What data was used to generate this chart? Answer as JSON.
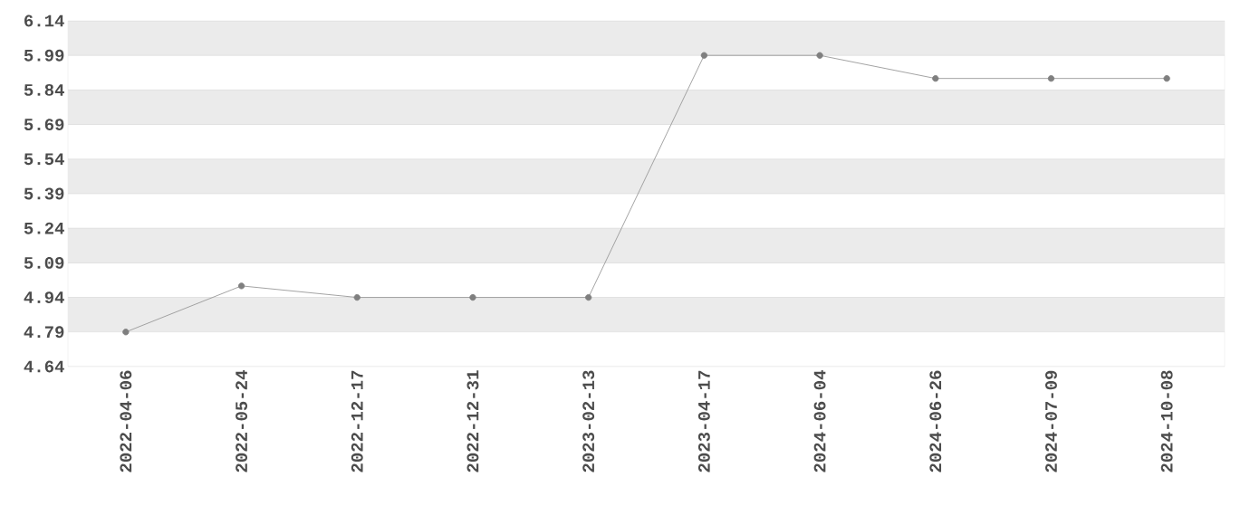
{
  "chart_data": {
    "type": "line",
    "categories": [
      "2022-04-06",
      "2022-05-24",
      "2022-12-17",
      "2022-12-31",
      "2023-02-13",
      "2023-04-17",
      "2024-06-04",
      "2024-06-26",
      "2024-07-09",
      "2024-10-08"
    ],
    "values": [
      4.79,
      4.99,
      4.94,
      4.94,
      4.94,
      5.99,
      5.99,
      5.89,
      5.89,
      5.89
    ],
    "color": "#7f7f7f",
    "marker": "circle",
    "line_style": "solid",
    "grid": "y",
    "ylim": [
      4.64,
      6.14
    ],
    "yticks": [
      4.64,
      4.79,
      4.94,
      5.09,
      5.24,
      5.39,
      5.54,
      5.69,
      5.84,
      5.99,
      6.14
    ]
  }
}
